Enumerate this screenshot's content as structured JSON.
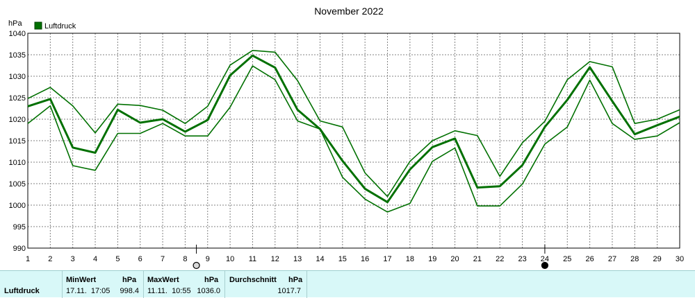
{
  "chart_data": {
    "type": "line",
    "title": "November 2022",
    "ylabel": "hPa",
    "legend": {
      "label": "Luftdruck",
      "color": "#007000",
      "placement": "top-left"
    },
    "ylim": [
      990,
      1040
    ],
    "yticks": [
      990,
      995,
      1000,
      1005,
      1010,
      1015,
      1020,
      1025,
      1030,
      1035,
      1040
    ],
    "x": [
      1,
      2,
      3,
      4,
      5,
      6,
      7,
      8,
      9,
      10,
      11,
      12,
      13,
      14,
      15,
      16,
      17,
      18,
      19,
      20,
      21,
      22,
      23,
      24,
      25,
      26,
      27,
      28,
      29,
      30
    ],
    "grid": true,
    "series": [
      {
        "role": "max",
        "values": [
          1024.8,
          1027.4,
          1023.1,
          1016.8,
          1023.5,
          1023.2,
          1022.1,
          1019.0,
          1023.0,
          1032.6,
          1036.0,
          1035.6,
          1029.0,
          1019.6,
          1018.2,
          1007.5,
          1002.0,
          1010.2,
          1015.0,
          1017.3,
          1016.2,
          1006.7,
          1014.5,
          1019.5,
          1029.2,
          1033.4,
          1032.2,
          1019.0,
          1020.0,
          1022.2
        ]
      },
      {
        "role": "avg",
        "values": [
          1023.0,
          1024.7,
          1013.4,
          1012.2,
          1022.2,
          1019.2,
          1020.0,
          1017.1,
          1019.8,
          1030.2,
          1034.8,
          1032.0,
          1022.2,
          1017.7,
          1010.3,
          1003.8,
          1000.7,
          1008.3,
          1013.5,
          1015.5,
          1004.1,
          1004.4,
          1009.3,
          1018.2,
          1024.5,
          1032.1,
          1024.2,
          1016.5,
          1018.6,
          1020.6
        ]
      },
      {
        "role": "min",
        "values": [
          1019.0,
          1023.1,
          1009.2,
          1008.1,
          1016.7,
          1016.7,
          1019.0,
          1016.1,
          1016.1,
          1022.8,
          1032.4,
          1029.2,
          1019.6,
          1017.7,
          1006.5,
          1001.4,
          998.4,
          1000.4,
          1010.2,
          1013.3,
          999.8,
          999.8,
          1004.9,
          1014.2,
          1018.2,
          1029.1,
          1019.0,
          1015.3,
          1016.1,
          1019.2
        ]
      }
    ],
    "moon_markers": [
      {
        "x": 8.5,
        "phase": "full"
      },
      {
        "x": 24,
        "phase": "new"
      }
    ],
    "colors": {
      "line": "#007000",
      "grid": "#808080",
      "stats_bg": "#d8f8f8"
    }
  },
  "stats": {
    "name": "Luftdruck",
    "min": {
      "label": "MinWert",
      "unit": "hPa",
      "time": "17.11.  17:05",
      "value": "998.4"
    },
    "max": {
      "label": "MaxWert",
      "unit": "hPa",
      "time": "11.11.  10:55",
      "value": "1036.0"
    },
    "avg": {
      "label": "Durchschnitt",
      "unit": "hPa",
      "value": "1017.7"
    }
  }
}
